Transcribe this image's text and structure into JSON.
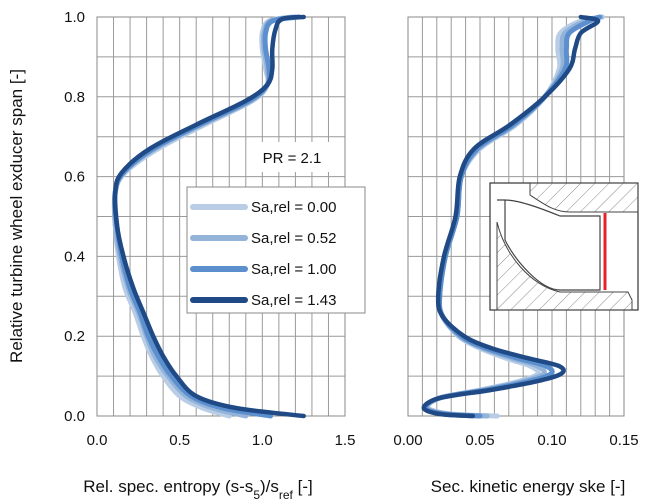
{
  "y_axis_label": "Relative turbine wheel exducer span  [-]",
  "annotation": "PR = 2.1",
  "colors": {
    "series": [
      "#b9cde6",
      "#94b3d9",
      "#5b8fce",
      "#1f4a86"
    ],
    "inset_red": "#e8202a",
    "grid": "#9a9a9a"
  },
  "chart_data": [
    {
      "type": "line",
      "xlabel_main": "Rel. spec. entropy (s-s",
      "xlabel_sub1": "5",
      "xlabel_mid": ")/s",
      "xlabel_sub2": "ref",
      "xlabel_tail": "  [-]",
      "ylabel": "Relative turbine wheel exducer span  [-]",
      "xlim": [
        0,
        1.5
      ],
      "ylim": [
        0,
        1.0
      ],
      "xticks": [
        "0.0",
        "0.5",
        "1.0",
        "1.5"
      ],
      "yticks": [
        "0.0",
        "0.2",
        "0.4",
        "0.6",
        "0.8",
        "1.0"
      ],
      "grid": true,
      "legend": "center-right",
      "series": [
        {
          "name": "Sa,rel = 0.00",
          "points": [
            [
              0.8,
              0.0
            ],
            [
              0.64,
              0.02
            ],
            [
              0.5,
              0.05
            ],
            [
              0.4,
              0.1
            ],
            [
              0.33,
              0.15
            ],
            [
              0.28,
              0.2
            ],
            [
              0.23,
              0.26
            ],
            [
              0.17,
              0.32
            ],
            [
              0.13,
              0.4
            ],
            [
              0.11,
              0.48
            ],
            [
              0.11,
              0.56
            ],
            [
              0.17,
              0.61
            ],
            [
              0.37,
              0.67
            ],
            [
              0.65,
              0.73
            ],
            [
              0.94,
              0.79
            ],
            [
              1.03,
              0.83
            ],
            [
              1.02,
              0.87
            ],
            [
              1.0,
              0.92
            ],
            [
              1.0,
              0.96
            ],
            [
              1.04,
              0.99
            ],
            [
              1.18,
              1.0
            ]
          ]
        },
        {
          "name": "Sa,rel = 0.52",
          "points": [
            [
              0.9,
              0.0
            ],
            [
              0.7,
              0.02
            ],
            [
              0.54,
              0.05
            ],
            [
              0.43,
              0.1
            ],
            [
              0.35,
              0.15
            ],
            [
              0.3,
              0.2
            ],
            [
              0.25,
              0.26
            ],
            [
              0.19,
              0.32
            ],
            [
              0.14,
              0.4
            ],
            [
              0.11,
              0.48
            ],
            [
              0.11,
              0.56
            ],
            [
              0.16,
              0.61
            ],
            [
              0.35,
              0.67
            ],
            [
              0.63,
              0.73
            ],
            [
              0.93,
              0.79
            ],
            [
              1.03,
              0.83
            ],
            [
              1.03,
              0.87
            ],
            [
              1.01,
              0.92
            ],
            [
              1.01,
              0.96
            ],
            [
              1.05,
              0.99
            ],
            [
              1.2,
              1.0
            ]
          ]
        },
        {
          "name": "Sa,rel = 1.00",
          "points": [
            [
              1.05,
              0.0
            ],
            [
              0.76,
              0.02
            ],
            [
              0.57,
              0.05
            ],
            [
              0.45,
              0.1
            ],
            [
              0.37,
              0.15
            ],
            [
              0.31,
              0.2
            ],
            [
              0.26,
              0.26
            ],
            [
              0.2,
              0.32
            ],
            [
              0.15,
              0.4
            ],
            [
              0.12,
              0.48
            ],
            [
              0.11,
              0.56
            ],
            [
              0.16,
              0.61
            ],
            [
              0.34,
              0.67
            ],
            [
              0.62,
              0.73
            ],
            [
              0.92,
              0.79
            ],
            [
              1.03,
              0.83
            ],
            [
              1.04,
              0.87
            ],
            [
              1.02,
              0.92
            ],
            [
              1.02,
              0.96
            ],
            [
              1.06,
              0.99
            ],
            [
              1.22,
              1.0
            ]
          ]
        },
        {
          "name": "Sa,rel = 1.43",
          "points": [
            [
              1.25,
              0.0
            ],
            [
              0.84,
              0.02
            ],
            [
              0.6,
              0.05
            ],
            [
              0.48,
              0.1
            ],
            [
              0.4,
              0.15
            ],
            [
              0.34,
              0.2
            ],
            [
              0.28,
              0.26
            ],
            [
              0.22,
              0.32
            ],
            [
              0.16,
              0.4
            ],
            [
              0.12,
              0.48
            ],
            [
              0.11,
              0.56
            ],
            [
              0.15,
              0.61
            ],
            [
              0.32,
              0.67
            ],
            [
              0.6,
              0.73
            ],
            [
              0.9,
              0.79
            ],
            [
              1.03,
              0.83
            ],
            [
              1.06,
              0.87
            ],
            [
              1.06,
              0.92
            ],
            [
              1.08,
              0.97
            ],
            [
              1.12,
              0.995
            ],
            [
              1.25,
              1.0
            ]
          ]
        }
      ]
    },
    {
      "type": "line",
      "xlabel": "Sec. kinetic energy  ske  [-]",
      "xlim": [
        0,
        0.15
      ],
      "ylim": [
        0,
        1.0
      ],
      "xticks": [
        "0.00",
        "0.05",
        "0.10",
        "0.15"
      ],
      "grid": true,
      "series": [
        {
          "name": "Sa,rel = 0.00",
          "points": [
            [
              0.062,
              0.0
            ],
            [
              0.03,
              0.005
            ],
            [
              0.014,
              0.02
            ],
            [
              0.022,
              0.045
            ],
            [
              0.05,
              0.065
            ],
            [
              0.075,
              0.085
            ],
            [
              0.09,
              0.105
            ],
            [
              0.085,
              0.125
            ],
            [
              0.068,
              0.145
            ],
            [
              0.05,
              0.17
            ],
            [
              0.035,
              0.2
            ],
            [
              0.024,
              0.25
            ],
            [
              0.022,
              0.3
            ],
            [
              0.026,
              0.4
            ],
            [
              0.034,
              0.5
            ],
            [
              0.037,
              0.6
            ],
            [
              0.05,
              0.67
            ],
            [
              0.075,
              0.73
            ],
            [
              0.095,
              0.8
            ],
            [
              0.105,
              0.87
            ],
            [
              0.104,
              0.92
            ],
            [
              0.106,
              0.96
            ],
            [
              0.12,
              0.99
            ],
            [
              0.135,
              1.0
            ]
          ]
        },
        {
          "name": "Sa,rel = 0.52",
          "points": [
            [
              0.055,
              0.0
            ],
            [
              0.028,
              0.005
            ],
            [
              0.013,
              0.02
            ],
            [
              0.022,
              0.045
            ],
            [
              0.052,
              0.065
            ],
            [
              0.078,
              0.085
            ],
            [
              0.094,
              0.105
            ],
            [
              0.09,
              0.125
            ],
            [
              0.072,
              0.145
            ],
            [
              0.052,
              0.17
            ],
            [
              0.036,
              0.2
            ],
            [
              0.024,
              0.25
            ],
            [
              0.022,
              0.3
            ],
            [
              0.026,
              0.4
            ],
            [
              0.034,
              0.5
            ],
            [
              0.037,
              0.6
            ],
            [
              0.049,
              0.67
            ],
            [
              0.074,
              0.73
            ],
            [
              0.095,
              0.8
            ],
            [
              0.107,
              0.87
            ],
            [
              0.107,
              0.92
            ],
            [
              0.109,
              0.96
            ],
            [
              0.123,
              0.99
            ],
            [
              0.134,
              1.0
            ]
          ]
        },
        {
          "name": "Sa,rel = 1.00",
          "points": [
            [
              0.05,
              0.0
            ],
            [
              0.025,
              0.005
            ],
            [
              0.012,
              0.02
            ],
            [
              0.022,
              0.045
            ],
            [
              0.054,
              0.065
            ],
            [
              0.082,
              0.085
            ],
            [
              0.099,
              0.105
            ],
            [
              0.096,
              0.125
            ],
            [
              0.076,
              0.145
            ],
            [
              0.054,
              0.17
            ],
            [
              0.037,
              0.2
            ],
            [
              0.024,
              0.25
            ],
            [
              0.022,
              0.3
            ],
            [
              0.026,
              0.4
            ],
            [
              0.034,
              0.5
            ],
            [
              0.037,
              0.6
            ],
            [
              0.048,
              0.67
            ],
            [
              0.073,
              0.73
            ],
            [
              0.095,
              0.8
            ],
            [
              0.109,
              0.87
            ],
            [
              0.11,
              0.92
            ],
            [
              0.112,
              0.96
            ],
            [
              0.126,
              0.99
            ],
            [
              0.133,
              1.0
            ]
          ]
        },
        {
          "name": "Sa,rel = 1.43",
          "points": [
            [
              0.045,
              0.0
            ],
            [
              0.022,
              0.005
            ],
            [
              0.011,
              0.02
            ],
            [
              0.022,
              0.045
            ],
            [
              0.057,
              0.065
            ],
            [
              0.087,
              0.085
            ],
            [
              0.106,
              0.105
            ],
            [
              0.105,
              0.125
            ],
            [
              0.083,
              0.145
            ],
            [
              0.058,
              0.17
            ],
            [
              0.039,
              0.2
            ],
            [
              0.024,
              0.25
            ],
            [
              0.021,
              0.3
            ],
            [
              0.025,
              0.4
            ],
            [
              0.033,
              0.5
            ],
            [
              0.036,
              0.6
            ],
            [
              0.046,
              0.67
            ],
            [
              0.071,
              0.73
            ],
            [
              0.095,
              0.8
            ],
            [
              0.112,
              0.87
            ],
            [
              0.116,
              0.92
            ],
            [
              0.12,
              0.96
            ],
            [
              0.132,
              0.99
            ],
            [
              0.12,
              1.0
            ]
          ]
        }
      ]
    }
  ]
}
